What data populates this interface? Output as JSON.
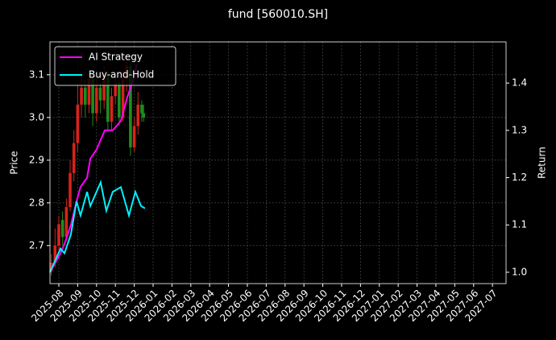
{
  "chart_data": {
    "type": "candlestick",
    "title": "fund [560010.SH]",
    "y_label": "Price",
    "y2_label": "Return",
    "xlim": [
      -0.47,
      23.72
    ],
    "xticks": [
      {
        "value": 0,
        "label": "2025-08"
      },
      {
        "value": 1,
        "label": "2025-09"
      },
      {
        "value": 2,
        "label": "2025-10"
      },
      {
        "value": 3,
        "label": "2025-11"
      },
      {
        "value": 4,
        "label": "2025-12"
      },
      {
        "value": 5,
        "label": "2026-01"
      },
      {
        "value": 6,
        "label": "2026-02"
      },
      {
        "value": 7,
        "label": "2026-03"
      },
      {
        "value": 8,
        "label": "2026-04"
      },
      {
        "value": 9,
        "label": "2026-05"
      },
      {
        "value": 10,
        "label": "2026-06"
      },
      {
        "value": 11,
        "label": "2026-07"
      },
      {
        "value": 12,
        "label": "2026-08"
      },
      {
        "value": 13,
        "label": "2026-09"
      },
      {
        "value": 14,
        "label": "2026-10"
      },
      {
        "value": 15,
        "label": "2026-11"
      },
      {
        "value": 16,
        "label": "2026-12"
      },
      {
        "value": 17,
        "label": "2027-01"
      },
      {
        "value": 18,
        "label": "2027-02"
      },
      {
        "value": 19,
        "label": "2027-03"
      },
      {
        "value": 20,
        "label": "2027-04"
      },
      {
        "value": 21,
        "label": "2027-05"
      },
      {
        "value": 22,
        "label": "2027-06"
      },
      {
        "value": 23,
        "label": "2027-07"
      }
    ],
    "ylim": [
      2.611,
      3.177
    ],
    "yticks": [
      2.7,
      2.8,
      2.9,
      {
        "value": 3,
        "label": "3.0"
      },
      3.1
    ],
    "y2lim": [
      0.976,
      1.487
    ],
    "y2ticks": [
      {
        "value": 1,
        "label": "1.0"
      },
      1.1,
      1.2,
      1.3,
      1.4
    ],
    "grid": true,
    "legend": "upper left",
    "up_color": "#d8231b",
    "down_color": "#1c8f1c",
    "candles": {
      "x": [
        -0.4,
        -0.2,
        0,
        0.2,
        0.4,
        0.6,
        0.8,
        1.0,
        1.2,
        1.4,
        1.6,
        1.8,
        2.0,
        2.2,
        2.4,
        2.6,
        2.8,
        3.0,
        3.2,
        3.4,
        3.6,
        3.8,
        4.0,
        4.2,
        4.4,
        4.5
      ],
      "open": [
        2.64,
        2.66,
        2.7,
        2.76,
        2.72,
        2.79,
        2.87,
        2.94,
        3.03,
        3.07,
        3.03,
        3.09,
        3.01,
        3.07,
        3.04,
        3.1,
        2.99,
        3.05,
        3.08,
        3.0,
        3.09,
        3.12,
        2.93,
        2.98,
        3.03,
        3.01
      ],
      "close": [
        2.66,
        2.7,
        2.75,
        2.72,
        2.79,
        2.87,
        2.94,
        3.03,
        3.07,
        3.03,
        3.09,
        3.01,
        3.07,
        3.04,
        3.1,
        2.99,
        3.05,
        3.08,
        3.0,
        3.09,
        3.12,
        2.93,
        2.98,
        3.03,
        3.01,
        3.0
      ],
      "high": [
        2.68,
        2.74,
        2.77,
        2.78,
        2.81,
        2.9,
        2.97,
        3.08,
        3.1,
        3.09,
        3.11,
        3.1,
        3.09,
        3.08,
        3.12,
        3.11,
        3.07,
        3.1,
        3.09,
        3.11,
        3.14,
        3.13,
        3.0,
        3.06,
        3.04,
        3.03
      ],
      "low": [
        2.63,
        2.65,
        2.69,
        2.7,
        2.71,
        2.78,
        2.85,
        2.92,
        3.0,
        3.0,
        3.01,
        2.98,
        2.99,
        3.01,
        3.02,
        2.97,
        2.97,
        3.03,
        2.98,
        2.99,
        3.06,
        2.91,
        2.92,
        2.96,
        2.99,
        2.99
      ]
    },
    "series": [
      {
        "name": "AI Strategy",
        "color": "#ff00ff",
        "axis": "y2",
        "x": [
          -0.47,
          0.09,
          0.3,
          0.64,
          0.94,
          1.15,
          1.5,
          1.67,
          2.01,
          2.22,
          2.44,
          2.86,
          3.29,
          3.63,
          3.93,
          4.15
        ],
        "values": [
          1.0,
          1.04,
          1.06,
          1.1,
          1.15,
          1.18,
          1.2,
          1.24,
          1.26,
          1.28,
          1.3,
          1.3,
          1.32,
          1.37,
          1.405,
          1.44
        ]
      },
      {
        "name": "Buy-and-Hold",
        "color": "#00f0ff",
        "axis": "y2",
        "x": [
          -0.47,
          0.09,
          0.3,
          0.64,
          0.94,
          1.15,
          1.5,
          1.67,
          2.22,
          2.52,
          2.86,
          3.29,
          3.72,
          4.06,
          4.36,
          4.57
        ],
        "values": [
          1.0,
          1.05,
          1.04,
          1.08,
          1.15,
          1.12,
          1.17,
          1.14,
          1.19,
          1.13,
          1.17,
          1.18,
          1.12,
          1.17,
          1.14,
          1.135
        ]
      }
    ]
  }
}
